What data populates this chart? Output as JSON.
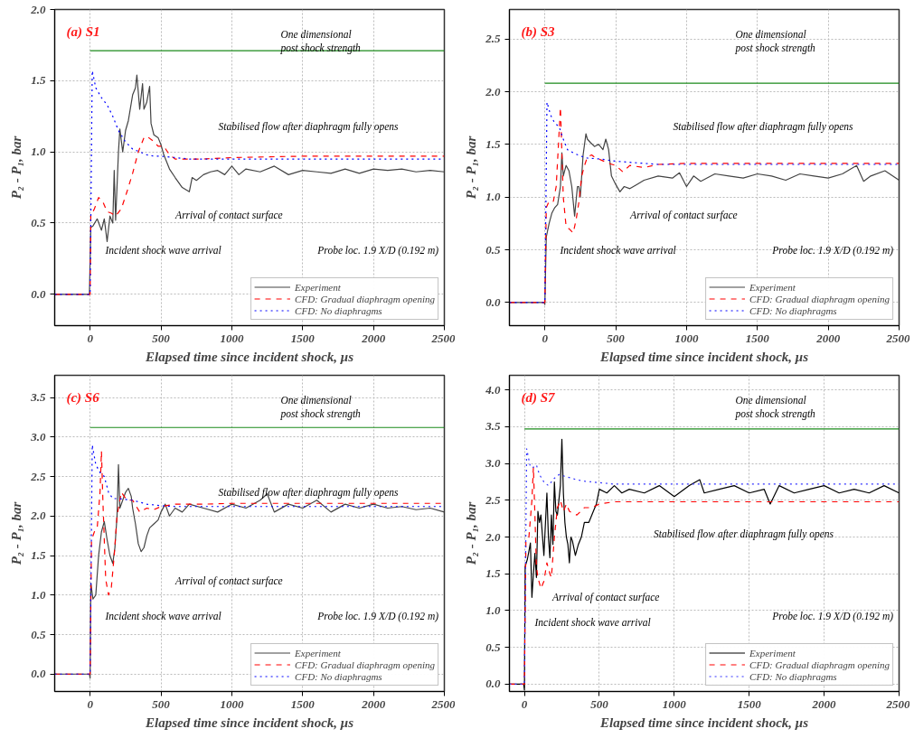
{
  "chart_data": [
    {
      "type": "line",
      "title": "(a) S1",
      "xlabel": "Elapsed time since incident shock, μs",
      "ylabel": "P₂ - P₁, bar",
      "xlim": [
        -250,
        2500
      ],
      "ylim": [
        -0.22,
        2.0
      ],
      "xticks": [
        0,
        500,
        1000,
        1500,
        2000,
        2500
      ],
      "yticks": [
        {
          "value": 0,
          "label": "0.0"
        },
        {
          "value": 0.5,
          "label": "0.5"
        },
        {
          "value": 1,
          "label": "1.0"
        },
        {
          "value": 1.5,
          "label": "1.5"
        },
        {
          "value": 2,
          "label": "2.0"
        }
      ],
      "grid": true,
      "legend": "bottom right",
      "series": [
        {
          "name": "Experiment",
          "color": "#444444",
          "line_style": "solid",
          "x": [
            -250,
            -5,
            5,
            20,
            50,
            80,
            100,
            120,
            140,
            160,
            170,
            180,
            200,
            210,
            230,
            250,
            270,
            300,
            320,
            330,
            350,
            370,
            380,
            400,
            420,
            430,
            450,
            480,
            500,
            520,
            560,
            600,
            650,
            700,
            720,
            750,
            800,
            850,
            900,
            950,
            1000,
            1050,
            1100,
            1200,
            1300,
            1400,
            1500,
            1600,
            1700,
            1800,
            1900,
            2000,
            2100,
            2200,
            2300,
            2400,
            2500
          ],
          "values": [
            0,
            0,
            0.47,
            0.48,
            0.53,
            0.45,
            0.53,
            0.37,
            0.55,
            0.5,
            0.87,
            0.52,
            1.0,
            1.16,
            1.0,
            1.15,
            1.22,
            1.4,
            1.45,
            1.54,
            1.3,
            1.48,
            1.3,
            1.35,
            1.46,
            1.2,
            1.12,
            1.1,
            1.05,
            0.98,
            0.88,
            0.82,
            0.75,
            0.72,
            0.82,
            0.8,
            0.84,
            0.86,
            0.87,
            0.84,
            0.9,
            0.84,
            0.88,
            0.86,
            0.9,
            0.84,
            0.87,
            0.86,
            0.85,
            0.88,
            0.85,
            0.88,
            0.87,
            0.88,
            0.86,
            0.87,
            0.86
          ]
        },
        {
          "name": "CFD: Gradual diaphragm opening",
          "color": "#ff0000",
          "line_style": "dashed",
          "x": [
            -250,
            0,
            5,
            30,
            60,
            90,
            120,
            150,
            180,
            220,
            260,
            300,
            340,
            380,
            400,
            440,
            480,
            520,
            560,
            600,
            700,
            800,
            1000,
            1500,
            2000,
            2500
          ],
          "values": [
            0,
            0,
            0.55,
            0.6,
            0.68,
            0.65,
            0.58,
            0.57,
            0.55,
            0.6,
            0.72,
            0.85,
            1.0,
            1.1,
            1.11,
            1.08,
            1.04,
            1.04,
            0.98,
            0.95,
            0.95,
            0.95,
            0.96,
            0.97,
            0.97,
            0.97
          ]
        },
        {
          "name": "CFD: No diaphragms",
          "color": "#0000ff",
          "line_style": "dotted",
          "x": [
            -250,
            0,
            15,
            40,
            80,
            120,
            160,
            200,
            250,
            300,
            350,
            400,
            450,
            500,
            600,
            700,
            800,
            1000,
            1500,
            2000,
            2500
          ],
          "values": [
            0,
            0,
            1.57,
            1.45,
            1.38,
            1.33,
            1.25,
            1.15,
            1.07,
            1.02,
            1.0,
            0.98,
            0.97,
            0.97,
            0.96,
            0.95,
            0.95,
            0.95,
            0.95,
            0.95,
            0.95
          ]
        },
        {
          "color": "#1a8a1a",
          "line_style": "solid",
          "x": [
            0,
            2500
          ],
          "values": [
            1.71,
            1.71
          ]
        }
      ],
      "annotations": [
        "One dimensional\npost shock strength",
        "Stabilised flow after diaphragm fully opens",
        "Arrival of contact surface",
        "Incident shock wave arrival",
        "Probe loc. 1.9 X/D (0.192 m)"
      ]
    },
    {
      "type": "line",
      "title": "(b) S3",
      "xlabel": "Elapsed time since incident shock, μs",
      "ylabel": "P₂ - P₁, bar",
      "xlim": [
        -250,
        2500
      ],
      "ylim": [
        -0.22,
        2.78
      ],
      "xticks": [
        0,
        500,
        1000,
        1500,
        2000,
        2500
      ],
      "yticks": [
        {
          "value": 0,
          "label": "0.0"
        },
        {
          "value": 0.5,
          "label": "0.5"
        },
        {
          "value": 1,
          "label": "1.0"
        },
        {
          "value": 1.5,
          "label": "1.5"
        },
        {
          "value": 2,
          "label": "2.0"
        },
        {
          "value": 2.5,
          "label": "2.5"
        }
      ],
      "grid": true,
      "legend": "bottom right",
      "series": [
        {
          "name": "Experiment",
          "color": "#444444",
          "line_style": "solid",
          "x": [
            -250,
            -5,
            0,
            10,
            30,
            50,
            70,
            90,
            110,
            120,
            130,
            150,
            170,
            190,
            210,
            230,
            240,
            250,
            270,
            290,
            300,
            320,
            350,
            380,
            410,
            430,
            450,
            470,
            500,
            530,
            560,
            600,
            650,
            700,
            800,
            900,
            950,
            1000,
            1050,
            1100,
            1200,
            1300,
            1400,
            1500,
            1600,
            1700,
            1800,
            1900,
            2000,
            2100,
            2200,
            2250,
            2300,
            2400,
            2500
          ],
          "values": [
            0,
            0,
            -0.02,
            0.62,
            0.75,
            0.85,
            0.9,
            0.93,
            1.1,
            1.42,
            1.2,
            1.3,
            1.25,
            1.1,
            0.82,
            1.1,
            1.1,
            1.0,
            1.4,
            1.6,
            1.55,
            1.52,
            1.48,
            1.5,
            1.45,
            1.55,
            1.45,
            1.2,
            1.12,
            1.05,
            1.1,
            1.08,
            1.12,
            1.16,
            1.2,
            1.18,
            1.23,
            1.1,
            1.2,
            1.15,
            1.22,
            1.2,
            1.18,
            1.22,
            1.2,
            1.16,
            1.22,
            1.2,
            1.18,
            1.22,
            1.3,
            1.15,
            1.2,
            1.25,
            1.16
          ]
        },
        {
          "name": "CFD: Gradual diaphragm opening",
          "color": "#ff0000",
          "line_style": "dashed",
          "x": [
            -250,
            0,
            10,
            30,
            60,
            80,
            100,
            110,
            130,
            150,
            170,
            200,
            220,
            240,
            260,
            280,
            300,
            330,
            350,
            400,
            450,
            500,
            550,
            600,
            700,
            800,
            1000,
            1500,
            2000,
            2500
          ],
          "values": [
            0,
            0,
            0.9,
            0.96,
            0.96,
            1.1,
            1.6,
            1.85,
            1.0,
            0.72,
            0.7,
            0.66,
            0.78,
            0.95,
            1.2,
            1.3,
            1.38,
            1.4,
            1.38,
            1.35,
            1.32,
            1.3,
            1.24,
            1.3,
            1.28,
            1.31,
            1.32,
            1.32,
            1.32,
            1.32
          ]
        },
        {
          "name": "CFD: No diaphragms",
          "color": "#0000ff",
          "line_style": "dotted",
          "x": [
            -250,
            0,
            15,
            40,
            70,
            100,
            130,
            160,
            200,
            250,
            300,
            400,
            500,
            600,
            800,
            1000,
            1500,
            2000,
            2500
          ],
          "values": [
            0,
            0,
            1.9,
            1.78,
            1.7,
            1.67,
            1.55,
            1.45,
            1.42,
            1.39,
            1.37,
            1.36,
            1.34,
            1.33,
            1.31,
            1.31,
            1.31,
            1.31,
            1.31
          ]
        },
        {
          "color": "#1a8a1a",
          "line_style": "solid",
          "x": [
            0,
            2500
          ],
          "values": [
            2.08,
            2.08
          ]
        }
      ],
      "annotations": [
        "One dimensional\npost shock strength",
        "Stabilised flow after diaphragm fully opens",
        "Arrival of contact surface",
        "Incident shock wave arrival",
        "Probe loc. 1.9 X/D (0.192 m)"
      ]
    },
    {
      "type": "line",
      "title": "(c) S6",
      "xlabel": "Elapsed time since incident shock, μs",
      "ylabel": "P₂ - P₁, bar",
      "xlim": [
        -250,
        2500
      ],
      "ylim": [
        -0.22,
        3.78
      ],
      "xticks": [
        0,
        500,
        1000,
        1500,
        2000,
        2500
      ],
      "yticks": [
        {
          "value": 0,
          "label": "0.0"
        },
        {
          "value": 0.5,
          "label": "0.5"
        },
        {
          "value": 1,
          "label": "1.0"
        },
        {
          "value": 1.5,
          "label": "1.5"
        },
        {
          "value": 2,
          "label": "2.0"
        },
        {
          "value": 2.5,
          "label": "2.5"
        },
        {
          "value": 3,
          "label": "3.0"
        },
        {
          "value": 3.5,
          "label": "3.5"
        }
      ],
      "grid": true,
      "legend": "bottom right",
      "series": [
        {
          "name": "Experiment",
          "color": "#444444",
          "line_style": "solid",
          "x": [
            -250,
            -5,
            0,
            5,
            20,
            40,
            60,
            80,
            100,
            120,
            140,
            160,
            175,
            190,
            200,
            210,
            230,
            250,
            270,
            290,
            300,
            320,
            340,
            360,
            380,
            400,
            420,
            450,
            480,
            500,
            530,
            560,
            600,
            650,
            700,
            800,
            900,
            1000,
            1100,
            1200,
            1250,
            1300,
            1400,
            1500,
            1600,
            1700,
            1800,
            1900,
            2000,
            2100,
            2200,
            2300,
            2400,
            2500
          ],
          "values": [
            0,
            0,
            -0.05,
            1.15,
            0.95,
            1.0,
            1.5,
            1.8,
            1.93,
            1.7,
            1.5,
            1.4,
            1.6,
            2.0,
            2.65,
            2.1,
            2.2,
            2.3,
            2.35,
            2.25,
            2.1,
            1.9,
            1.65,
            1.55,
            1.6,
            1.75,
            1.85,
            1.9,
            1.95,
            2.05,
            2.15,
            2.0,
            2.1,
            2.05,
            2.15,
            2.1,
            2.05,
            2.15,
            2.1,
            2.2,
            2.28,
            2.05,
            2.15,
            2.1,
            2.2,
            2.05,
            2.15,
            2.1,
            2.15,
            2.1,
            2.12,
            2.08,
            2.1,
            2.05
          ]
        },
        {
          "name": "CFD: Gradual diaphragm opening",
          "color": "#ff0000",
          "line_style": "dashed",
          "x": [
            -250,
            0,
            10,
            30,
            50,
            70,
            80,
            90,
            110,
            130,
            150,
            170,
            190,
            200,
            220,
            240,
            260,
            300,
            350,
            400,
            450,
            500,
            600,
            800,
            1000,
            1500,
            2000,
            2500
          ],
          "values": [
            0,
            0,
            1.7,
            1.8,
            1.85,
            2.3,
            2.82,
            2.2,
            1.2,
            1.0,
            1.1,
            1.5,
            2.0,
            2.1,
            2.3,
            2.25,
            2.2,
            2.2,
            2.05,
            2.1,
            2.08,
            2.12,
            2.15,
            2.15,
            2.16,
            2.16,
            2.16,
            2.16
          ]
        },
        {
          "name": "CFD: No diaphragms",
          "color": "#0000ff",
          "line_style": "dotted",
          "x": [
            -250,
            0,
            15,
            40,
            70,
            100,
            130,
            160,
            200,
            300,
            400,
            500,
            600,
            800,
            1000,
            1500,
            2000,
            2500
          ],
          "values": [
            0,
            0,
            2.9,
            2.65,
            2.55,
            2.5,
            2.3,
            2.22,
            2.22,
            2.2,
            2.15,
            2.13,
            2.12,
            2.12,
            2.12,
            2.12,
            2.12,
            2.12
          ]
        },
        {
          "color": "#1a8a1a",
          "line_style": "solid",
          "x": [
            0,
            2500
          ],
          "values": [
            3.12,
            3.12
          ]
        }
      ],
      "annotations": [
        "One dimensional\npost shock strength",
        "Stabilised flow after diaphragm fully opens",
        "Arrival of contact surface",
        "Incident shock wave arrival",
        "Probe loc. 1.9 X/D (0.192 m)"
      ]
    },
    {
      "type": "line",
      "title": "(d) S7",
      "xlabel": "Elapsed time since incident shock, μs",
      "ylabel": "P₂ - P₁, bar",
      "xlim": [
        -100,
        2500
      ],
      "ylim": [
        -0.1,
        4.2
      ],
      "xticks": [
        0,
        500,
        1000,
        1500,
        2000,
        2500
      ],
      "yticks": [
        {
          "value": 0,
          "label": "0.0"
        },
        {
          "value": 0.5,
          "label": "0.5"
        },
        {
          "value": 1,
          "label": "1.0"
        },
        {
          "value": 1.5,
          "label": "1.5"
        },
        {
          "value": 2,
          "label": "2.0"
        },
        {
          "value": 2.5,
          "label": "2.5"
        },
        {
          "value": 3,
          "label": "3.0"
        },
        {
          "value": 3.5,
          "label": "3.5"
        },
        {
          "value": 4,
          "label": "4.0"
        }
      ],
      "grid": true,
      "legend": "bottom right",
      "series": [
        {
          "name": "Experiment",
          "color": "#000000",
          "line_style": "solid",
          "x": [
            -100,
            -5,
            0,
            5,
            20,
            40,
            50,
            60,
            70,
            80,
            90,
            100,
            110,
            130,
            150,
            160,
            170,
            180,
            190,
            200,
            210,
            220,
            240,
            250,
            260,
            270,
            280,
            290,
            300,
            310,
            320,
            340,
            360,
            380,
            400,
            430,
            460,
            480,
            500,
            550,
            600,
            650,
            700,
            800,
            900,
            1000,
            1100,
            1170,
            1200,
            1300,
            1400,
            1500,
            1600,
            1640,
            1700,
            1800,
            1900,
            2000,
            2100,
            2200,
            2300,
            2400,
            2500
          ],
          "values": [
            0,
            0,
            -0.08,
            1.6,
            1.7,
            1.92,
            1.18,
            1.5,
            1.78,
            1.45,
            2.35,
            2.2,
            2.3,
            1.75,
            2.6,
            2.0,
            1.72,
            2.3,
            1.9,
            2.75,
            2.35,
            2.3,
            2.7,
            3.33,
            2.6,
            2.2,
            2.0,
            1.9,
            1.65,
            2.0,
            1.95,
            1.75,
            1.9,
            2.0,
            2.2,
            2.2,
            2.35,
            2.45,
            2.65,
            2.6,
            2.7,
            2.6,
            2.65,
            2.6,
            2.7,
            2.55,
            2.7,
            2.78,
            2.6,
            2.65,
            2.7,
            2.6,
            2.65,
            2.45,
            2.7,
            2.6,
            2.65,
            2.7,
            2.6,
            2.65,
            2.6,
            2.7,
            2.6
          ]
        },
        {
          "name": "CFD: Gradual diaphragm opening",
          "color": "#ff0000",
          "line_style": "dashed",
          "x": [
            -100,
            0,
            10,
            30,
            50,
            60,
            70,
            80,
            90,
            110,
            130,
            150,
            170,
            180,
            200,
            220,
            240,
            260,
            280,
            300,
            350,
            400,
            450,
            500,
            600,
            800,
            1000,
            1500,
            2000,
            2500
          ],
          "values": [
            0,
            0,
            1.95,
            2.0,
            2.5,
            2.95,
            2.3,
            1.6,
            1.45,
            1.3,
            1.4,
            1.65,
            1.5,
            1.45,
            2.0,
            2.4,
            2.5,
            2.35,
            2.45,
            2.35,
            2.3,
            2.4,
            2.4,
            2.45,
            2.48,
            2.48,
            2.48,
            2.48,
            2.48,
            2.48
          ]
        },
        {
          "name": "CFD: No diaphragms",
          "color": "#3333ff",
          "line_style": "dotted",
          "x": [
            -100,
            0,
            15,
            40,
            60,
            80,
            100,
            130,
            160,
            200,
            230,
            280,
            350,
            400,
            500,
            600,
            800,
            1000,
            1500,
            2000,
            2500
          ],
          "values": [
            0,
            0,
            3.2,
            2.95,
            2.95,
            2.98,
            2.85,
            2.75,
            2.7,
            2.8,
            2.85,
            2.82,
            2.78,
            2.76,
            2.74,
            2.72,
            2.72,
            2.72,
            2.72,
            2.72,
            2.72
          ]
        },
        {
          "color": "#1a8a1a",
          "line_style": "solid",
          "x": [
            0,
            2500
          ],
          "values": [
            3.47,
            3.47
          ]
        }
      ],
      "annotations": [
        "One dimensional\npost shock strength",
        "Stabilised flow after diaphragm fully opens",
        "Arrival of contact surface",
        "Incident shock wave arrival",
        "Probe loc. 1.9 X/D (0.192 m)"
      ]
    }
  ]
}
